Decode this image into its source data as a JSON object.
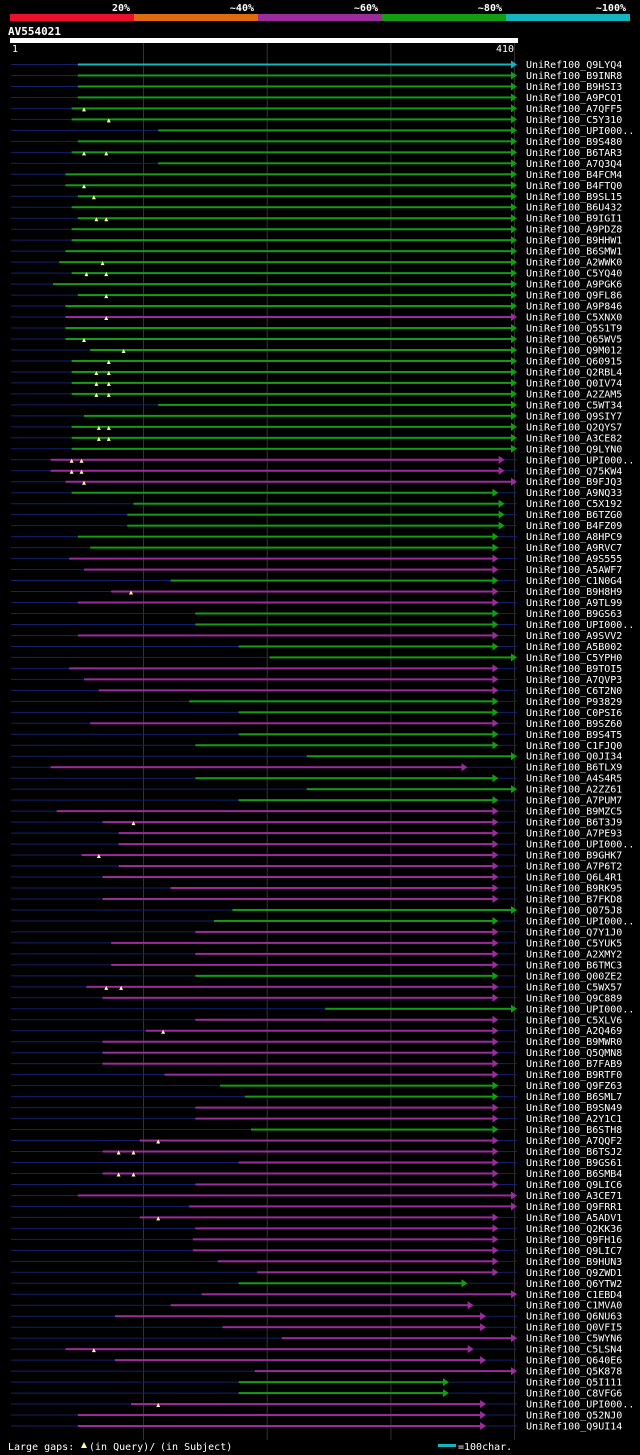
{
  "query": "AV554021",
  "query_length": 410,
  "ruler_start": "1",
  "ruler_end": "410",
  "colors": {
    "background": "#000000",
    "bin_20": "#e8102a",
    "bin_40": "#e06a10",
    "bin_60": "#9b2c9c",
    "bin_80": "#139d13",
    "bin_100": "#12b5c0",
    "query_bar": "#ffffff",
    "backbone": "#13206e",
    "gap_marker": "#ffff99",
    "grid": "#333333"
  },
  "legend": {
    "bins": [
      {
        "label": "20%",
        "color": "#e8102a"
      },
      {
        "label": "~40%",
        "color": "#e06a10"
      },
      {
        "label": "~60%",
        "color": "#9b2c9c"
      },
      {
        "label": "~80%",
        "color": "#139d13"
      },
      {
        "label": "~100%",
        "color": "#12b5c0"
      }
    ],
    "footer_gaps_prefix": "Large gaps:",
    "footer_gaps_query": "(in Query)/",
    "footer_gaps_subject": "(in Subject)",
    "scale_label": "=100char."
  },
  "chart_data": {
    "type": "alignment",
    "title": "AV554021",
    "x_range": [
      1,
      410
    ],
    "hits": [
      {
        "name": "UniRef100_Q9LYQ4",
        "start": 55,
        "end": 410,
        "bin": "100",
        "gaps": []
      },
      {
        "name": "UniRef100_B9INR8",
        "start": 55,
        "end": 410,
        "bin": "80",
        "gaps": []
      },
      {
        "name": "UniRef100_B9HSI3",
        "start": 55,
        "end": 410,
        "bin": "80",
        "gaps": []
      },
      {
        "name": "UniRef100_A9PCQ1",
        "start": 55,
        "end": 410,
        "bin": "80",
        "gaps": []
      },
      {
        "name": "UniRef100_A7QFF5",
        "start": 50,
        "end": 410,
        "bin": "80",
        "gaps": [
          60
        ]
      },
      {
        "name": "UniRef100_C5Y310",
        "start": 50,
        "end": 410,
        "bin": "80",
        "gaps": [
          80
        ]
      },
      {
        "name": "UniRef100_UPI000..",
        "start": 120,
        "end": 410,
        "bin": "80",
        "gaps": []
      },
      {
        "name": "UniRef100_B9S480",
        "start": 55,
        "end": 410,
        "bin": "80",
        "gaps": []
      },
      {
        "name": "UniRef100_B6TAR3",
        "start": 50,
        "end": 410,
        "bin": "80",
        "gaps": [
          60,
          78
        ]
      },
      {
        "name": "UniRef100_A7Q3Q4",
        "start": 120,
        "end": 410,
        "bin": "80",
        "gaps": []
      },
      {
        "name": "UniRef100_B4FCM4",
        "start": 45,
        "end": 410,
        "bin": "80",
        "gaps": []
      },
      {
        "name": "UniRef100_B4FTQ0",
        "start": 45,
        "end": 410,
        "bin": "80",
        "gaps": [
          60
        ]
      },
      {
        "name": "UniRef100_B9SL15",
        "start": 55,
        "end": 410,
        "bin": "80",
        "gaps": [
          68
        ]
      },
      {
        "name": "UniRef100_B6U432",
        "start": 50,
        "end": 410,
        "bin": "80",
        "gaps": []
      },
      {
        "name": "UniRef100_B9IGI1",
        "start": 55,
        "end": 410,
        "bin": "80",
        "gaps": [
          70,
          78
        ]
      },
      {
        "name": "UniRef100_A9PDZ8",
        "start": 50,
        "end": 410,
        "bin": "80",
        "gaps": []
      },
      {
        "name": "UniRef100_B9HHW1",
        "start": 50,
        "end": 410,
        "bin": "80",
        "gaps": []
      },
      {
        "name": "UniRef100_B6SMW1",
        "start": 45,
        "end": 410,
        "bin": "80",
        "gaps": []
      },
      {
        "name": "UniRef100_A2WWK0",
        "start": 40,
        "end": 410,
        "bin": "80",
        "gaps": [
          75
        ]
      },
      {
        "name": "UniRef100_C5YQ40",
        "start": 50,
        "end": 410,
        "bin": "80",
        "gaps": [
          62,
          78
        ]
      },
      {
        "name": "UniRef100_A9PGK6",
        "start": 35,
        "end": 410,
        "bin": "80",
        "gaps": []
      },
      {
        "name": "UniRef100_Q9FL86",
        "start": 55,
        "end": 410,
        "bin": "80",
        "gaps": [
          78
        ]
      },
      {
        "name": "UniRef100_A9P846",
        "start": 45,
        "end": 410,
        "bin": "80",
        "gaps": []
      },
      {
        "name": "UniRef100_C5XNX0",
        "start": 45,
        "end": 410,
        "bin": "60",
        "gaps": [
          78
        ]
      },
      {
        "name": "UniRef100_Q5S1T9",
        "start": 45,
        "end": 410,
        "bin": "80",
        "gaps": []
      },
      {
        "name": "UniRef100_Q65WV5",
        "start": 45,
        "end": 410,
        "bin": "80",
        "gaps": [
          60
        ]
      },
      {
        "name": "UniRef100_Q9M012",
        "start": 65,
        "end": 410,
        "bin": "80",
        "gaps": [
          92
        ]
      },
      {
        "name": "UniRef100_Q60915",
        "start": 50,
        "end": 410,
        "bin": "80",
        "gaps": [
          80
        ]
      },
      {
        "name": "UniRef100_Q2RBL4",
        "start": 50,
        "end": 410,
        "bin": "80",
        "gaps": [
          70,
          80
        ]
      },
      {
        "name": "UniRef100_Q0IV74",
        "start": 50,
        "end": 410,
        "bin": "80",
        "gaps": [
          70,
          80
        ]
      },
      {
        "name": "UniRef100_A2ZAM5",
        "start": 50,
        "end": 410,
        "bin": "80",
        "gaps": [
          70,
          80
        ]
      },
      {
        "name": "UniRef100_C5WT34",
        "start": 120,
        "end": 410,
        "bin": "80",
        "gaps": []
      },
      {
        "name": "UniRef100_Q9SIY7",
        "start": 60,
        "end": 410,
        "bin": "80",
        "gaps": []
      },
      {
        "name": "UniRef100_Q2QYS7",
        "start": 50,
        "end": 410,
        "bin": "80",
        "gaps": [
          72,
          80
        ]
      },
      {
        "name": "UniRef100_A3CE82",
        "start": 50,
        "end": 410,
        "bin": "80",
        "gaps": [
          72,
          80
        ]
      },
      {
        "name": "UniRef100_Q9LYN0",
        "start": 50,
        "end": 410,
        "bin": "80",
        "gaps": []
      },
      {
        "name": "UniRef100_UPI000..",
        "start": 33,
        "end": 400,
        "bin": "60",
        "gaps": [
          50,
          58
        ]
      },
      {
        "name": "UniRef100_Q75KW4",
        "start": 33,
        "end": 400,
        "bin": "60",
        "gaps": [
          50,
          58
        ]
      },
      {
        "name": "UniRef100_B9FJQ3",
        "start": 45,
        "end": 410,
        "bin": "60",
        "gaps": [
          60
        ]
      },
      {
        "name": "UniRef100_A9NQ33",
        "start": 50,
        "end": 395,
        "bin": "80",
        "gaps": []
      },
      {
        "name": "UniRef100_C5X192",
        "start": 100,
        "end": 400,
        "bin": "80",
        "gaps": []
      },
      {
        "name": "UniRef100_B6TZG0",
        "start": 95,
        "end": 400,
        "bin": "80",
        "gaps": []
      },
      {
        "name": "UniRef100_B4FZ09",
        "start": 95,
        "end": 400,
        "bin": "80",
        "gaps": []
      },
      {
        "name": "UniRef100_A8HPC9",
        "start": 55,
        "end": 395,
        "bin": "80",
        "gaps": []
      },
      {
        "name": "UniRef100_A9RVC7",
        "start": 65,
        "end": 395,
        "bin": "80",
        "gaps": []
      },
      {
        "name": "UniRef100_A9S555",
        "start": 48,
        "end": 395,
        "bin": "60",
        "gaps": []
      },
      {
        "name": "UniRef100_A5AWF7",
        "start": 60,
        "end": 395,
        "bin": "60",
        "gaps": []
      },
      {
        "name": "UniRef100_C1N0G4",
        "start": 130,
        "end": 395,
        "bin": "80",
        "gaps": []
      },
      {
        "name": "UniRef100_B9H8H9",
        "start": 82,
        "end": 395,
        "bin": "60",
        "gaps": [
          98
        ]
      },
      {
        "name": "UniRef100_A9TL99",
        "start": 55,
        "end": 395,
        "bin": "60",
        "gaps": []
      },
      {
        "name": "UniRef100_B9GS63",
        "start": 150,
        "end": 395,
        "bin": "80",
        "gaps": []
      },
      {
        "name": "UniRef100_UPI000..",
        "start": 150,
        "end": 395,
        "bin": "80",
        "gaps": []
      },
      {
        "name": "UniRef100_A9SVV2",
        "start": 55,
        "end": 395,
        "bin": "60",
        "gaps": []
      },
      {
        "name": "UniRef100_A5B002",
        "start": 185,
        "end": 395,
        "bin": "80",
        "gaps": []
      },
      {
        "name": "UniRef100_C5YPH0",
        "start": 210,
        "end": 410,
        "bin": "80",
        "gaps": []
      },
      {
        "name": "UniRef100_B9TOI5",
        "start": 48,
        "end": 395,
        "bin": "60",
        "gaps": []
      },
      {
        "name": "UniRef100_A7QVP3",
        "start": 60,
        "end": 395,
        "bin": "60",
        "gaps": []
      },
      {
        "name": "UniRef100_C6T2N0",
        "start": 72,
        "end": 395,
        "bin": "60",
        "gaps": []
      },
      {
        "name": "UniRef100_P93829",
        "start": 145,
        "end": 395,
        "bin": "80",
        "gaps": []
      },
      {
        "name": "UniRef100_C0PSI6",
        "start": 185,
        "end": 395,
        "bin": "80",
        "gaps": []
      },
      {
        "name": "UniRef100_B9SZ60",
        "start": 65,
        "end": 395,
        "bin": "60",
        "gaps": []
      },
      {
        "name": "UniRef100_B9S4T5",
        "start": 185,
        "end": 395,
        "bin": "80",
        "gaps": []
      },
      {
        "name": "UniRef100_C1FJQ0",
        "start": 150,
        "end": 395,
        "bin": "80",
        "gaps": []
      },
      {
        "name": "UniRef100_Q0JI34",
        "start": 240,
        "end": 410,
        "bin": "80",
        "gaps": []
      },
      {
        "name": "UniRef100_B6TLX9",
        "start": 33,
        "end": 370,
        "bin": "60",
        "gaps": []
      },
      {
        "name": "UniRef100_A4S4R5",
        "start": 150,
        "end": 395,
        "bin": "80",
        "gaps": []
      },
      {
        "name": "UniRef100_A2ZZ61",
        "start": 240,
        "end": 410,
        "bin": "80",
        "gaps": []
      },
      {
        "name": "UniRef100_A7PUM7",
        "start": 185,
        "end": 395,
        "bin": "80",
        "gaps": []
      },
      {
        "name": "UniRef100_B9MZC5",
        "start": 38,
        "end": 395,
        "bin": "60",
        "gaps": []
      },
      {
        "name": "UniRef100_B6T3J9",
        "start": 75,
        "end": 395,
        "bin": "60",
        "gaps": [
          100
        ]
      },
      {
        "name": "UniRef100_A7PE93",
        "start": 88,
        "end": 395,
        "bin": "60",
        "gaps": []
      },
      {
        "name": "UniRef100_UPI000..",
        "start": 88,
        "end": 395,
        "bin": "60",
        "gaps": []
      },
      {
        "name": "UniRef100_B9GHK7",
        "start": 58,
        "end": 395,
        "bin": "60",
        "gaps": [
          72
        ]
      },
      {
        "name": "UniRef100_A7P6T2",
        "start": 88,
        "end": 395,
        "bin": "60",
        "gaps": []
      },
      {
        "name": "UniRef100_Q6L4R1",
        "start": 75,
        "end": 395,
        "bin": "60",
        "gaps": []
      },
      {
        "name": "UniRef100_B9RK95",
        "start": 130,
        "end": 395,
        "bin": "60",
        "gaps": []
      },
      {
        "name": "UniRef100_B7FKD8",
        "start": 75,
        "end": 395,
        "bin": "60",
        "gaps": []
      },
      {
        "name": "UniRef100_Q075J8",
        "start": 180,
        "end": 410,
        "bin": "80",
        "gaps": []
      },
      {
        "name": "UniRef100_UPI000..",
        "start": 165,
        "end": 395,
        "bin": "80",
        "gaps": []
      },
      {
        "name": "UniRef100_Q7Y1J0",
        "start": 150,
        "end": 395,
        "bin": "60",
        "gaps": []
      },
      {
        "name": "UniRef100_C5YUK5",
        "start": 82,
        "end": 395,
        "bin": "60",
        "gaps": []
      },
      {
        "name": "UniRef100_A2XMY2",
        "start": 150,
        "end": 395,
        "bin": "60",
        "gaps": []
      },
      {
        "name": "UniRef100_B6TMC3",
        "start": 82,
        "end": 395,
        "bin": "60",
        "gaps": []
      },
      {
        "name": "UniRef100_Q00ZE2",
        "start": 150,
        "end": 395,
        "bin": "80",
        "gaps": []
      },
      {
        "name": "UniRef100_C5WX57",
        "start": 62,
        "end": 395,
        "bin": "60",
        "gaps": [
          78,
          90
        ]
      },
      {
        "name": "UniRef100_Q9C889",
        "start": 75,
        "end": 395,
        "bin": "60",
        "gaps": []
      },
      {
        "name": "UniRef100_UPI000..",
        "start": 255,
        "end": 410,
        "bin": "80",
        "gaps": []
      },
      {
        "name": "UniRef100_C5XLV6",
        "start": 150,
        "end": 395,
        "bin": "60",
        "gaps": []
      },
      {
        "name": "UniRef100_A2Q469",
        "start": 110,
        "end": 395,
        "bin": "60",
        "gaps": [
          124
        ]
      },
      {
        "name": "UniRef100_B9MWR0",
        "start": 75,
        "end": 395,
        "bin": "60",
        "gaps": []
      },
      {
        "name": "UniRef100_Q5QMN8",
        "start": 75,
        "end": 395,
        "bin": "60",
        "gaps": []
      },
      {
        "name": "UniRef100_B7FAB9",
        "start": 75,
        "end": 395,
        "bin": "60",
        "gaps": []
      },
      {
        "name": "UniRef100_B9RTF0",
        "start": 125,
        "end": 395,
        "bin": "60",
        "gaps": []
      },
      {
        "name": "UniRef100_Q9FZ63",
        "start": 170,
        "end": 395,
        "bin": "80",
        "gaps": []
      },
      {
        "name": "UniRef100_B6SML7",
        "start": 190,
        "end": 395,
        "bin": "80",
        "gaps": []
      },
      {
        "name": "UniRef100_B9SN49",
        "start": 150,
        "end": 395,
        "bin": "60",
        "gaps": []
      },
      {
        "name": "UniRef100_A2Y1C1",
        "start": 150,
        "end": 395,
        "bin": "60",
        "gaps": []
      },
      {
        "name": "UniRef100_B6STH8",
        "start": 195,
        "end": 395,
        "bin": "80",
        "gaps": []
      },
      {
        "name": "UniRef100_A7QQF2",
        "start": 105,
        "end": 395,
        "bin": "60",
        "gaps": [
          120
        ]
      },
      {
        "name": "UniRef100_B6TSJ2",
        "start": 75,
        "end": 395,
        "bin": "60",
        "gaps": [
          88,
          100
        ]
      },
      {
        "name": "UniRef100_B9GS61",
        "start": 185,
        "end": 395,
        "bin": "60",
        "gaps": []
      },
      {
        "name": "UniRef100_B6SMB4",
        "start": 75,
        "end": 395,
        "bin": "60",
        "gaps": [
          88,
          100
        ]
      },
      {
        "name": "UniRef100_Q9LIC6",
        "start": 150,
        "end": 395,
        "bin": "60",
        "gaps": []
      },
      {
        "name": "UniRef100_A3CE71",
        "start": 55,
        "end": 410,
        "bin": "60",
        "gaps": []
      },
      {
        "name": "UniRef100_Q9FRR1",
        "start": 145,
        "end": 410,
        "bin": "60",
        "gaps": []
      },
      {
        "name": "UniRef100_A5ADV1",
        "start": 105,
        "end": 395,
        "bin": "60",
        "gaps": [
          120
        ]
      },
      {
        "name": "UniRef100_Q2KK36",
        "start": 150,
        "end": 395,
        "bin": "60",
        "gaps": []
      },
      {
        "name": "UniRef100_Q9FH16",
        "start": 148,
        "end": 395,
        "bin": "60",
        "gaps": []
      },
      {
        "name": "UniRef100_Q9LIC7",
        "start": 148,
        "end": 395,
        "bin": "60",
        "gaps": []
      },
      {
        "name": "UniRef100_B9HUN3",
        "start": 168,
        "end": 395,
        "bin": "60",
        "gaps": []
      },
      {
        "name": "UniRef100_Q9ZWD1",
        "start": 200,
        "end": 395,
        "bin": "60",
        "gaps": []
      },
      {
        "name": "UniRef100_Q6YTW2",
        "start": 185,
        "end": 370,
        "bin": "80",
        "gaps": []
      },
      {
        "name": "UniRef100_C1EBD4",
        "start": 155,
        "end": 410,
        "bin": "60",
        "gaps": []
      },
      {
        "name": "UniRef100_C1MVA0",
        "start": 130,
        "end": 375,
        "bin": "60",
        "gaps": []
      },
      {
        "name": "UniRef100_Q6NU63",
        "start": 85,
        "end": 385,
        "bin": "60",
        "gaps": []
      },
      {
        "name": "UniRef100_Q0VFI5",
        "start": 172,
        "end": 385,
        "bin": "60",
        "gaps": []
      },
      {
        "name": "UniRef100_C5WYN6",
        "start": 220,
        "end": 410,
        "bin": "60",
        "gaps": []
      },
      {
        "name": "UniRef100_C5LSN4",
        "start": 45,
        "end": 375,
        "bin": "60",
        "gaps": [
          68
        ]
      },
      {
        "name": "UniRef100_Q640E6",
        "start": 85,
        "end": 385,
        "bin": "60",
        "gaps": []
      },
      {
        "name": "UniRef100_Q5K878",
        "start": 198,
        "end": 410,
        "bin": "60",
        "gaps": []
      },
      {
        "name": "UniRef100_Q5I111",
        "start": 185,
        "end": 355,
        "bin": "80",
        "gaps": []
      },
      {
        "name": "UniRef100_C8VFG6",
        "start": 185,
        "end": 355,
        "bin": "80",
        "gaps": []
      },
      {
        "name": "UniRef100_UPI000..",
        "start": 98,
        "end": 385,
        "bin": "60",
        "gaps": [
          120
        ]
      },
      {
        "name": "UniRef100_Q52NJ0",
        "start": 55,
        "end": 385,
        "bin": "60",
        "gaps": []
      },
      {
        "name": "UniRef100_Q9UI14",
        "start": 55,
        "end": 385,
        "bin": "60",
        "gaps": []
      }
    ]
  }
}
